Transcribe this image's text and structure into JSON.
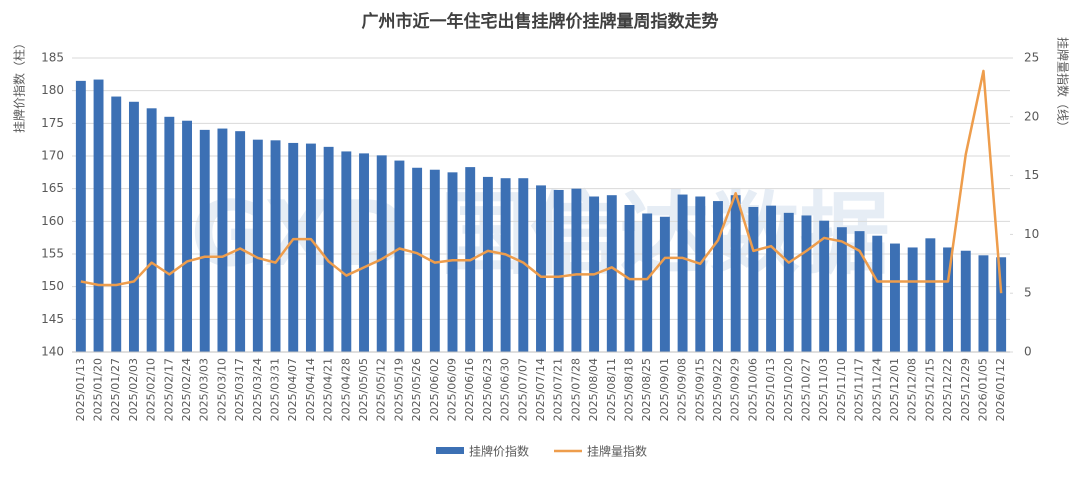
{
  "chart_data": {
    "type": "bar-line",
    "title": "广州市近一年住宅出售挂牌价挂牌量周指数走势",
    "y_label": "挂牌价指数（柱）",
    "y2_label": "挂牌量指数（线）",
    "watermark": "GXD 国信达数据",
    "categories": [
      "2025/01/13",
      "2025/01/20",
      "2025/01/27",
      "2025/02/03",
      "2025/02/10",
      "2025/02/17",
      "2025/02/24",
      "2025/03/03",
      "2025/03/10",
      "2025/03/17",
      "2025/03/24",
      "2025/03/31",
      "2025/04/07",
      "2025/04/14",
      "2025/04/21",
      "2025/04/28",
      "2025/05/05",
      "2025/05/12",
      "2025/05/19",
      "2025/05/26",
      "2025/06/02",
      "2025/06/09",
      "2025/06/16",
      "2025/06/23",
      "2025/06/30",
      "2025/07/07",
      "2025/07/14",
      "2025/07/21",
      "2025/07/28",
      "2025/08/04",
      "2025/08/11",
      "2025/08/18",
      "2025/08/25",
      "2025/09/01",
      "2025/09/08",
      "2025/09/15",
      "2025/09/22",
      "2025/09/29",
      "2025/10/06",
      "2025/10/13",
      "2025/10/20",
      "2025/10/27",
      "2025/11/03",
      "2025/11/10",
      "2025/11/17",
      "2025/11/24",
      "2025/12/01",
      "2025/12/08",
      "2025/12/15",
      "2025/12/22",
      "2025/12/29",
      "2026/01/05",
      "2026/01/12"
    ],
    "series": [
      {
        "name": "挂牌价指数",
        "color": "#3c70b4",
        "kind": "bar",
        "axis": "y",
        "values": [
          181.5,
          181.7,
          179.1,
          178.3,
          177.3,
          176.0,
          175.4,
          174.0,
          174.2,
          173.8,
          172.5,
          172.4,
          172.0,
          171.9,
          171.4,
          170.7,
          170.4,
          170.1,
          169.3,
          168.2,
          167.9,
          167.5,
          168.3,
          166.8,
          166.6,
          166.6,
          165.5,
          164.8,
          165.0,
          163.8,
          164.0,
          162.5,
          161.2,
          160.7,
          164.1,
          163.8,
          163.1,
          164.0,
          162.2,
          162.4,
          161.3,
          160.9,
          160.1,
          159.1,
          158.5,
          157.8,
          156.6,
          156.0,
          157.4,
          156.0,
          155.5,
          154.8,
          154.5
        ]
      },
      {
        "name": "挂牌量指数",
        "color": "#ee9d4c",
        "kind": "line",
        "axis": "y2",
        "values": [
          6.0,
          5.7,
          5.7,
          6.0,
          7.6,
          6.6,
          7.7,
          8.1,
          8.1,
          8.8,
          8.0,
          7.6,
          9.6,
          9.6,
          7.7,
          6.5,
          7.2,
          7.9,
          8.8,
          8.4,
          7.6,
          7.8,
          7.8,
          8.6,
          8.3,
          7.6,
          6.4,
          6.4,
          6.6,
          6.6,
          7.2,
          6.2,
          6.2,
          8.0,
          8.0,
          7.5,
          9.5,
          13.5,
          8.6,
          9.0,
          7.6,
          8.6,
          9.7,
          9.4,
          8.6,
          6.0,
          6.0,
          6.0,
          6.0,
          6.0,
          16.8,
          23.9,
          5.0
        ]
      }
    ],
    "ylim": [
      140,
      185
    ],
    "yticks": [
      140,
      145,
      150,
      155,
      160,
      165,
      170,
      175,
      180,
      185
    ],
    "y2lim": [
      0,
      25
    ],
    "y2ticks": [
      0,
      5,
      10,
      15,
      20,
      25
    ],
    "grid": true
  }
}
